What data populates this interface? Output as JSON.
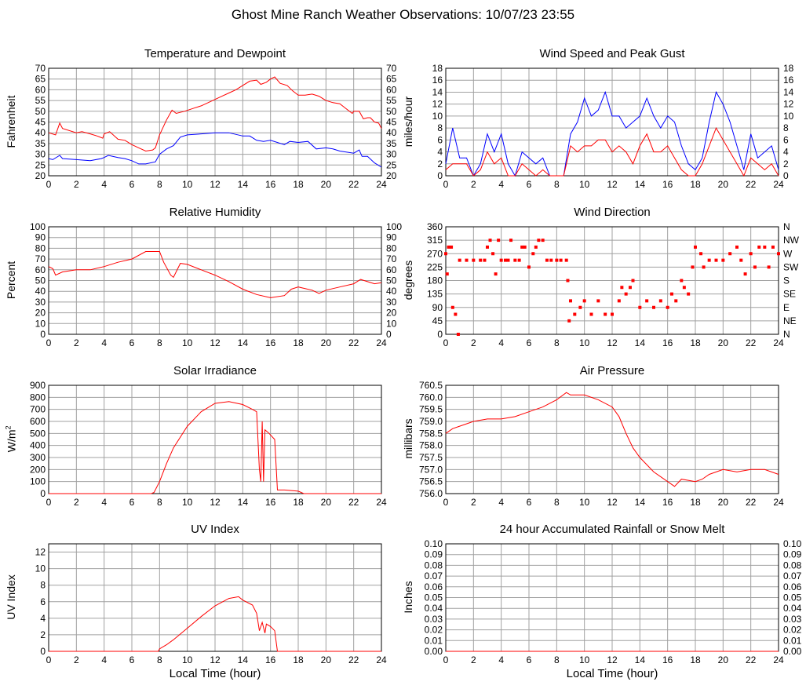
{
  "title": "Ghost Mine Ranch Weather Observations: 10/07/23 23:55",
  "xlabel": "Local Time (hour)",
  "chart_data": [
    {
      "type": "line",
      "title": "Temperature and Dewpoint",
      "ylabel": "Fahrenheit",
      "xlim": [
        0,
        24
      ],
      "xticks": [
        0,
        2,
        4,
        6,
        8,
        10,
        12,
        14,
        16,
        18,
        20,
        22,
        24
      ],
      "ylim": [
        20,
        70
      ],
      "ystep": 5,
      "decimals": 0,
      "right_axis": true,
      "grid": true,
      "series": [
        {
          "name": "Temperature",
          "color": "#ff0000",
          "x": [
            0,
            0.5,
            0.8,
            1,
            2,
            2.4,
            3,
            3.5,
            3.9,
            4,
            4.4,
            5,
            5.5,
            6,
            6.5,
            7,
            7.5,
            7.7,
            8,
            8.5,
            8.9,
            9.2,
            9.8,
            10.5,
            11,
            11.5,
            12,
            12.5,
            13,
            13.5,
            14,
            14.5,
            15,
            15.3,
            15.7,
            16,
            16.3,
            16.7,
            17.2,
            17.6,
            18,
            18.5,
            19,
            19.5,
            20,
            20.5,
            21,
            21.5,
            21.9,
            22,
            22.4,
            22.7,
            23,
            23.2,
            23.5,
            23.8,
            24
          ],
          "y": [
            40,
            39,
            44.5,
            42,
            40,
            40.5,
            39.5,
            38.5,
            37.5,
            39.5,
            40.5,
            37,
            36.5,
            34.5,
            33,
            31.5,
            32,
            33,
            39,
            46,
            50.5,
            49,
            50,
            51.5,
            52.5,
            54,
            55.5,
            57,
            58.5,
            60,
            62,
            64,
            64.5,
            62.5,
            63.5,
            65,
            66,
            63,
            62,
            59.5,
            57.5,
            57.5,
            58,
            57,
            55,
            54,
            53.5,
            51,
            49,
            50,
            50,
            46.5,
            47,
            47,
            45,
            44.5,
            42
          ]
        },
        {
          "name": "Dewpoint",
          "color": "#0000ff",
          "x": [
            0,
            0.3,
            0.8,
            1,
            2,
            3,
            3.8,
            4,
            4.3,
            5,
            5.5,
            6,
            6.5,
            7,
            7.7,
            8,
            8.5,
            9,
            9.5,
            10,
            11,
            12,
            13,
            14,
            14.5,
            15,
            15.5,
            16,
            17,
            17.4,
            18,
            18.7,
            19.3,
            20,
            20.5,
            21,
            22,
            22.4,
            22.6,
            23,
            23.5,
            24
          ],
          "y": [
            28,
            27.5,
            29.5,
            28,
            27.5,
            27,
            28,
            28.5,
            29.5,
            28.5,
            28,
            27,
            25.5,
            25.5,
            26.5,
            30,
            32.5,
            34,
            38,
            39,
            39.5,
            40,
            40,
            38.5,
            38.5,
            36.5,
            36,
            36.5,
            34.5,
            36,
            35.5,
            36,
            32.5,
            33,
            32.5,
            31.5,
            30.5,
            32,
            29,
            29,
            26,
            24
          ]
        }
      ]
    },
    {
      "type": "line",
      "title": "Wind Speed and Peak Gust",
      "ylabel": "miles/hour",
      "xlim": [
        0,
        24
      ],
      "xticks": [
        0,
        2,
        4,
        6,
        8,
        10,
        12,
        14,
        16,
        18,
        20,
        22,
        24
      ],
      "ylim": [
        0,
        18
      ],
      "ystep": 2,
      "decimals": 0,
      "right_axis": true,
      "grid": true,
      "series": [
        {
          "name": "Peak Gust",
          "color": "#0000ff",
          "x": [
            0,
            0.5,
            1,
            1.5,
            2,
            2.5,
            3,
            3.5,
            4,
            4.5,
            5,
            5.5,
            6,
            6.5,
            7,
            7.5,
            8,
            8.5,
            9,
            9.5,
            10,
            10.5,
            11,
            11.5,
            12,
            12.5,
            13,
            13.5,
            14,
            14.5,
            15,
            15.5,
            16,
            16.5,
            17,
            17.5,
            18,
            18.5,
            19,
            19.5,
            20,
            20.5,
            21,
            21.5,
            22,
            22.5,
            23,
            23.5,
            24
          ],
          "y": [
            2,
            8,
            3,
            3,
            0,
            2,
            7,
            4,
            7,
            2,
            0,
            4,
            3,
            2,
            3,
            0,
            0,
            0,
            7,
            9,
            13,
            10,
            11,
            14,
            10,
            10,
            8,
            9,
            10,
            13,
            10,
            8,
            10,
            9,
            5,
            2,
            1,
            3,
            9,
            14,
            12,
            9,
            5,
            1,
            7,
            3,
            4,
            5,
            1
          ]
        },
        {
          "name": "Wind Speed",
          "color": "#ff0000",
          "x": [
            0,
            0.5,
            1,
            1.5,
            2,
            2.5,
            3,
            3.5,
            4,
            4.5,
            5,
            5.5,
            6,
            6.5,
            7,
            7.5,
            8,
            8.5,
            9,
            9.5,
            10,
            10.5,
            11,
            11.5,
            12,
            12.5,
            13,
            13.5,
            14,
            14.5,
            15,
            15.5,
            16,
            16.5,
            17,
            17.5,
            18,
            18.5,
            19,
            19.5,
            20,
            20.5,
            21,
            21.5,
            22,
            22.5,
            23,
            23.5,
            24
          ],
          "y": [
            1,
            2,
            2,
            2,
            0,
            1,
            4,
            2,
            3,
            0,
            0,
            2,
            1,
            0,
            1,
            0,
            0,
            0,
            5,
            4,
            5,
            5,
            6,
            6,
            4,
            5,
            4,
            2,
            5,
            7,
            4,
            4,
            5,
            3,
            1,
            0,
            0,
            2,
            5,
            8,
            6,
            4,
            2,
            0,
            3,
            2,
            1,
            2,
            0
          ]
        }
      ]
    },
    {
      "type": "line",
      "title": "Relative Humidity",
      "ylabel": "Percent",
      "xlim": [
        0,
        24
      ],
      "xticks": [
        0,
        2,
        4,
        6,
        8,
        10,
        12,
        14,
        16,
        18,
        20,
        22,
        24
      ],
      "ylim": [
        0,
        100
      ],
      "ystep": 10,
      "decimals": 0,
      "right_axis": true,
      "grid": true,
      "series": [
        {
          "name": "Relative Humidity",
          "color": "#ff0000",
          "x": [
            0,
            0.3,
            0.5,
            1,
            2,
            3,
            4,
            5,
            6,
            7,
            8,
            8.3,
            8.8,
            9,
            9.5,
            10,
            11,
            12,
            13,
            14,
            15,
            16,
            17,
            17.5,
            18,
            19,
            19.5,
            20,
            21,
            22,
            22.5,
            23,
            23.5,
            24
          ],
          "y": [
            63,
            61,
            55,
            58,
            60,
            60,
            63,
            67,
            70,
            77,
            77,
            67,
            55,
            53,
            66,
            65,
            60,
            55,
            49,
            42,
            37,
            34,
            36,
            42,
            44,
            41,
            38,
            41,
            44,
            47,
            51,
            49,
            47,
            48
          ]
        }
      ]
    },
    {
      "type": "scatter",
      "title": "Wind Direction",
      "ylabel": "degrees",
      "xlim": [
        0,
        24
      ],
      "xticks": [
        0,
        2,
        4,
        6,
        8,
        10,
        12,
        14,
        16,
        18,
        20,
        22,
        24
      ],
      "ylim": [
        0,
        360
      ],
      "ystep": 45,
      "decimals": 0,
      "right_axis": true,
      "grid": true,
      "right_labels": [
        "N",
        "NE",
        "E",
        "SE",
        "S",
        "SW",
        "W",
        "NW",
        "N"
      ],
      "series": [
        {
          "name": "Wind Direction",
          "color": "#ff0000",
          "x": [
            0,
            0.1,
            0.2,
            0.4,
            0.5,
            0.7,
            0.9,
            1,
            1.5,
            2,
            2.5,
            2.8,
            3,
            3.2,
            3.4,
            3.6,
            3.8,
            4,
            4.3,
            4.5,
            4.7,
            5,
            5.3,
            5.5,
            5.7,
            6,
            6.3,
            6.5,
            6.7,
            7,
            7.3,
            7.6,
            8,
            8.3,
            8.7,
            8.8,
            8.9,
            9,
            9.3,
            9.7,
            10,
            10.5,
            11,
            11.5,
            12,
            12.5,
            12.7,
            13,
            13.3,
            13.5,
            14,
            14.5,
            15,
            15.5,
            16,
            16.3,
            16.6,
            17,
            17.2,
            17.5,
            17.8,
            18,
            18.4,
            18.6,
            19,
            19.5,
            20,
            20.5,
            21,
            21.3,
            21.6,
            22,
            22.3,
            22.6,
            23,
            23.3,
            23.6,
            24
          ],
          "y": [
            270,
            202,
            292,
            292,
            90,
            67,
            0,
            248,
            248,
            248,
            248,
            248,
            292,
            315,
            270,
            202,
            315,
            248,
            248,
            248,
            315,
            248,
            248,
            292,
            292,
            225,
            270,
            292,
            315,
            315,
            248,
            248,
            248,
            248,
            248,
            180,
            45,
            112,
            67,
            90,
            112,
            67,
            112,
            67,
            67,
            112,
            157,
            135,
            157,
            180,
            90,
            112,
            90,
            112,
            90,
            135,
            112,
            180,
            157,
            135,
            225,
            292,
            270,
            225,
            248,
            248,
            248,
            270,
            292,
            248,
            202,
            270,
            225,
            292,
            292,
            225,
            292,
            270
          ]
        }
      ]
    },
    {
      "type": "line",
      "title": "Solar Irradiance",
      "ylabel": "W/m",
      "ylabel_sup": "2",
      "xlim": [
        0,
        24
      ],
      "xticks": [
        0,
        2,
        4,
        6,
        8,
        10,
        12,
        14,
        16,
        18,
        20,
        22,
        24
      ],
      "ylim": [
        0,
        900
      ],
      "ystep": 100,
      "decimals": 0,
      "right_axis": false,
      "grid": true,
      "series": [
        {
          "name": "Solar Irradiance",
          "color": "#ff0000",
          "x": [
            0,
            7.4,
            7.6,
            8,
            8.5,
            9,
            10,
            11,
            12,
            13,
            14,
            14.7,
            15,
            15.2,
            15.3,
            15.4,
            15.5,
            15.6,
            15.9,
            16.3,
            16.5,
            17,
            18,
            18.4,
            24
          ],
          "y": [
            0,
            0,
            10,
            100,
            250,
            380,
            560,
            680,
            750,
            765,
            740,
            700,
            680,
            200,
            100,
            600,
            100,
            530,
            500,
            450,
            30,
            30,
            20,
            0,
            0
          ]
        }
      ]
    },
    {
      "type": "line",
      "title": "Air Pressure",
      "ylabel": "millibars",
      "xlim": [
        0,
        24
      ],
      "xticks": [
        0,
        2,
        4,
        6,
        8,
        10,
        12,
        14,
        16,
        18,
        20,
        22,
        24
      ],
      "ylim": [
        756.0,
        760.5
      ],
      "ystep": 0.5,
      "decimals": 1,
      "right_axis": false,
      "grid": true,
      "series": [
        {
          "name": "Air Pressure",
          "color": "#ff0000",
          "x": [
            0,
            0.5,
            1,
            2,
            3,
            4,
            5,
            6,
            7,
            8,
            8.7,
            9,
            10,
            11,
            12,
            12.5,
            13,
            13.5,
            14,
            15,
            16,
            16.5,
            17,
            18,
            18.5,
            19,
            20,
            21,
            22,
            23,
            24
          ],
          "y": [
            758.5,
            758.7,
            758.8,
            759.0,
            759.1,
            759.1,
            759.2,
            759.4,
            759.6,
            759.9,
            760.2,
            760.1,
            760.1,
            759.9,
            759.6,
            759.2,
            758.5,
            757.9,
            757.5,
            756.9,
            756.5,
            756.3,
            756.6,
            756.5,
            756.6,
            756.8,
            757.0,
            756.9,
            757.0,
            757.0,
            756.8
          ]
        }
      ]
    },
    {
      "type": "line",
      "title": "UV Index",
      "ylabel": "UV Index",
      "xlim": [
        0,
        24
      ],
      "xticks": [
        0,
        2,
        4,
        6,
        8,
        10,
        12,
        14,
        16,
        18,
        20,
        22,
        24
      ],
      "ylim": [
        0,
        13
      ],
      "ystep": 2,
      "decimals": 0,
      "right_axis": false,
      "grid": true,
      "series": [
        {
          "name": "UV Index",
          "color": "#ff0000",
          "x": [
            0,
            7.9,
            8,
            8.5,
            9,
            10,
            11,
            12,
            13,
            13.7,
            14,
            14.7,
            15,
            15.2,
            15.4,
            15.6,
            15.7,
            16,
            16.3,
            16.5,
            24
          ],
          "y": [
            0,
            0,
            0.3,
            0.8,
            1.4,
            2.8,
            4.2,
            5.5,
            6.4,
            6.6,
            6.2,
            5.6,
            4.6,
            2.5,
            3.5,
            2.2,
            3.3,
            3.0,
            2.5,
            0,
            0
          ]
        }
      ]
    },
    {
      "type": "line",
      "title": "24 hour Accumulated Rainfall or Snow Melt",
      "ylabel": "Inches",
      "xlim": [
        0,
        24
      ],
      "xticks": [
        0,
        2,
        4,
        6,
        8,
        10,
        12,
        14,
        16,
        18,
        20,
        22,
        24
      ],
      "ylim": [
        0,
        0.1
      ],
      "ystep": 0.01,
      "decimals": 2,
      "right_axis": true,
      "grid": true,
      "series": [
        {
          "name": "Rainfall",
          "color": "#ff0000",
          "x": [
            0,
            24
          ],
          "y": [
            0,
            0
          ]
        }
      ]
    }
  ]
}
